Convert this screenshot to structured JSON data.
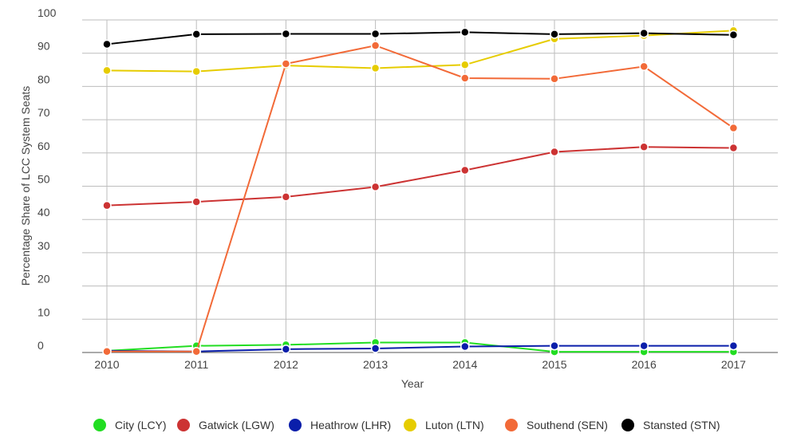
{
  "chart_data": {
    "type": "line",
    "x": [
      2010,
      2011,
      2012,
      2013,
      2014,
      2015,
      2016,
      2017
    ],
    "xlabel": "Year",
    "ylabel": "Percentage Share of LCC System Seats",
    "ylim": [
      0,
      100
    ],
    "yticks": [
      0,
      10,
      20,
      30,
      40,
      50,
      60,
      70,
      80,
      90,
      100
    ],
    "grid": true,
    "legend_position": "bottom",
    "series": [
      {
        "name": "City (LCY)",
        "color": "#22dd22",
        "values": [
          0.5,
          2,
          2.3,
          3,
          3,
          0.2,
          0.2,
          0.2
        ]
      },
      {
        "name": "Gatwick (LGW)",
        "color": "#cc3333",
        "values": [
          44.2,
          45.3,
          46.8,
          49.8,
          54.8,
          60.3,
          61.8,
          61.5
        ]
      },
      {
        "name": "Heathrow (LHR)",
        "color": "#0a1eaa",
        "values": [
          0.5,
          0.3,
          1,
          1.2,
          1.8,
          2,
          2,
          2
        ]
      },
      {
        "name": "Luton (LTN)",
        "color": "#e6cc00",
        "values": [
          84.8,
          84.5,
          86.3,
          85.5,
          86.5,
          94.3,
          95.3,
          96.8
        ]
      },
      {
        "name": "Southend (SEN)",
        "color": "#f26a38",
        "values": [
          0.3,
          0.3,
          86.8,
          92.3,
          82.5,
          82.3,
          86,
          67.5
        ]
      },
      {
        "name": "Stansted (STN)",
        "color": "#000000",
        "values": [
          92.7,
          95.7,
          95.8,
          95.8,
          96.3,
          95.7,
          96,
          95.5
        ]
      }
    ]
  }
}
